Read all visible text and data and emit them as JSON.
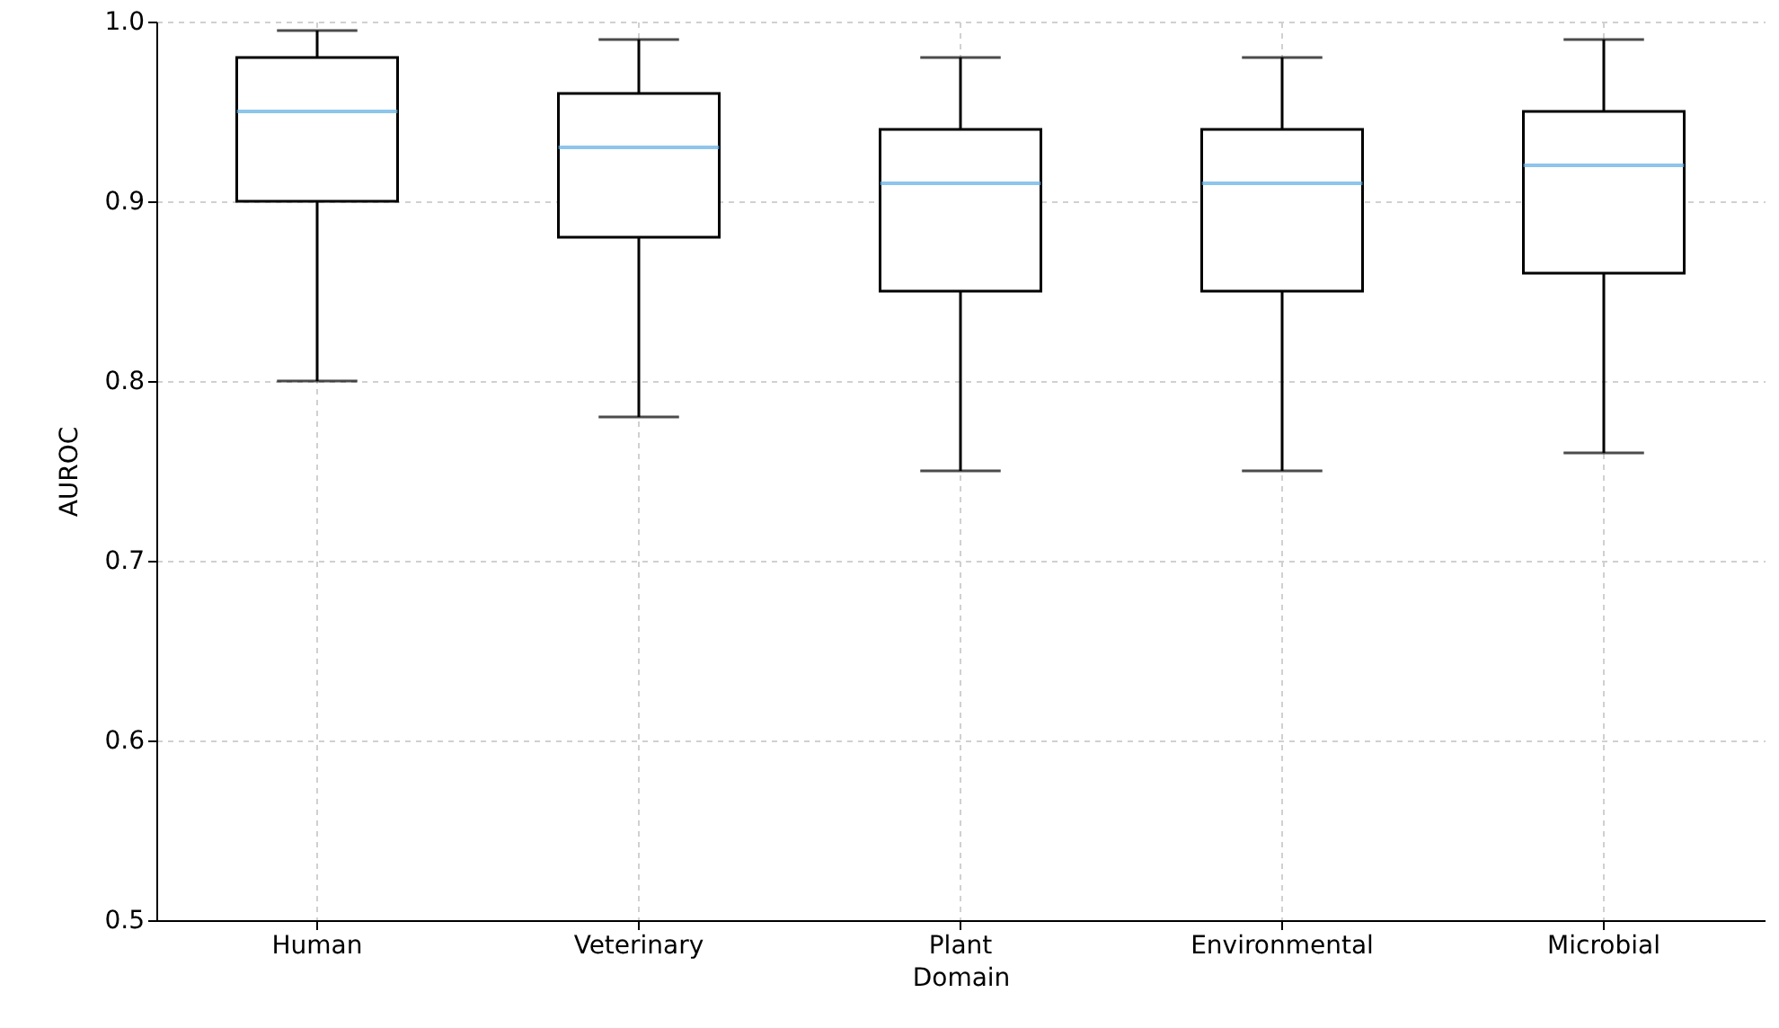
{
  "chart_data": {
    "type": "box",
    "xlabel": "Domain",
    "ylabel": "AUROC",
    "categories": [
      "Human",
      "Veterinary",
      "Plant",
      "Environmental",
      "Microbial"
    ],
    "boxes": [
      {
        "low": 0.8,
        "q1": 0.9,
        "median": 0.95,
        "q3": 0.98,
        "high": 0.995
      },
      {
        "low": 0.78,
        "q1": 0.88,
        "median": 0.93,
        "q3": 0.96,
        "high": 0.99
      },
      {
        "low": 0.75,
        "q1": 0.85,
        "median": 0.91,
        "q3": 0.94,
        "high": 0.98
      },
      {
        "low": 0.75,
        "q1": 0.85,
        "median": 0.91,
        "q3": 0.94,
        "high": 0.98
      },
      {
        "low": 0.76,
        "q1": 0.86,
        "median": 0.92,
        "q3": 0.95,
        "high": 0.99
      }
    ],
    "ylim": [
      0.5,
      1.0
    ],
    "yticks": [
      0.5,
      0.6,
      0.7,
      0.8,
      0.9,
      {
        "value": 1,
        "label": "1.0"
      }
    ],
    "grid": true
  }
}
